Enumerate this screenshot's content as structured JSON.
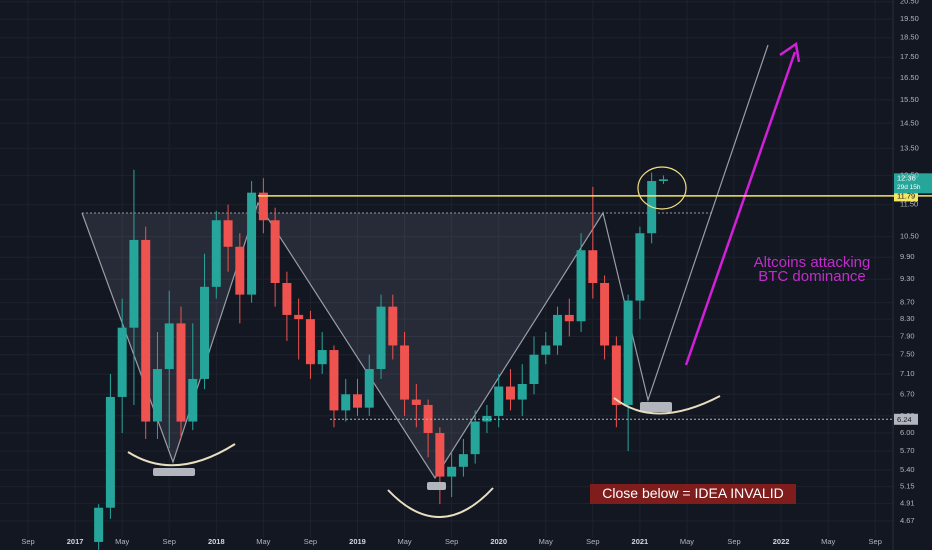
{
  "chart_data": {
    "type": "candlestick",
    "x": [
      "2017-03",
      "2017-04",
      "2017-05",
      "2017-06",
      "2017-07",
      "2017-08",
      "2017-09",
      "2017-10",
      "2017-11",
      "2017-12",
      "2018-01",
      "2018-02",
      "2018-03",
      "2018-04",
      "2018-05",
      "2018-06",
      "2018-07",
      "2018-08",
      "2018-09",
      "2018-10",
      "2018-11",
      "2018-12",
      "2019-01",
      "2019-02",
      "2019-03",
      "2019-04",
      "2019-05",
      "2019-06",
      "2019-07",
      "2019-08",
      "2019-09",
      "2019-10",
      "2019-11",
      "2019-12",
      "2020-01",
      "2020-02",
      "2020-03",
      "2020-04",
      "2020-05",
      "2020-06",
      "2020-07",
      "2020-08",
      "2020-09",
      "2020-10",
      "2020-11",
      "2020-12",
      "2021-01",
      "2021-02",
      "2021-03"
    ],
    "open": [
      4.4,
      4.85,
      6.65,
      8.1,
      10.4,
      6.2,
      7.2,
      8.2,
      6.2,
      7.0,
      9.1,
      11.0,
      10.2,
      8.9,
      11.9,
      11.0,
      9.2,
      8.4,
      8.3,
      7.3,
      7.6,
      6.4,
      6.7,
      6.45,
      7.2,
      8.6,
      7.7,
      6.6,
      6.5,
      6.0,
      5.3,
      5.45,
      5.65,
      6.2,
      6.3,
      6.85,
      6.6,
      6.9,
      7.5,
      7.7,
      8.4,
      8.25,
      10.1,
      9.2,
      7.7,
      6.5,
      8.75,
      10.6,
      12.3
    ],
    "high": [
      4.9,
      7.1,
      8.8,
      12.7,
      10.8,
      8.0,
      9.0,
      8.6,
      8.2,
      10.0,
      11.3,
      11.5,
      10.6,
      12.3,
      12.4,
      11.4,
      9.5,
      8.8,
      8.5,
      8.0,
      7.7,
      7.0,
      7.0,
      7.5,
      8.9,
      8.9,
      8.0,
      6.9,
      6.6,
      6.1,
      5.7,
      5.9,
      6.4,
      6.5,
      7.1,
      7.2,
      7.3,
      7.9,
      8.0,
      8.6,
      8.8,
      10.6,
      12.1,
      9.4,
      7.9,
      8.9,
      10.8,
      12.6,
      12.5
    ],
    "low": [
      4.3,
      4.7,
      6.0,
      6.5,
      5.9,
      5.9,
      5.75,
      5.9,
      6.05,
      6.8,
      8.8,
      9.5,
      8.2,
      8.7,
      10.6,
      8.6,
      7.8,
      7.4,
      7.0,
      7.1,
      6.1,
      6.2,
      6.3,
      6.3,
      7.0,
      7.4,
      6.3,
      6.1,
      5.6,
      4.9,
      5.0,
      5.3,
      5.5,
      6.0,
      6.1,
      6.4,
      6.3,
      6.7,
      7.3,
      7.5,
      7.9,
      8.0,
      8.8,
      7.4,
      6.1,
      5.7,
      8.3,
      10.3,
      12.2
    ],
    "close": [
      4.85,
      6.65,
      8.1,
      10.4,
      6.2,
      7.2,
      8.2,
      6.2,
      7.0,
      9.1,
      11.0,
      10.2,
      8.9,
      11.9,
      11.0,
      9.2,
      8.4,
      8.3,
      7.3,
      7.6,
      6.4,
      6.7,
      6.45,
      7.2,
      8.6,
      7.7,
      6.6,
      6.5,
      6.0,
      5.3,
      5.45,
      5.65,
      6.2,
      6.3,
      6.85,
      6.6,
      6.9,
      7.5,
      7.7,
      8.4,
      8.25,
      10.1,
      9.2,
      7.7,
      6.5,
      8.75,
      10.6,
      12.3,
      12.36
    ],
    "up_color": "#26a69a",
    "down_color": "#ef5350",
    "log_scale": true,
    "grid": true,
    "xlim": [
      "2016-07",
      "2022-10"
    ],
    "xticks": [
      {
        "value": "2016-09",
        "label": "Sep"
      },
      {
        "value": "2017-01",
        "label": "2017"
      },
      {
        "value": "2017-05",
        "label": "May"
      },
      {
        "value": "2017-09",
        "label": "Sep"
      },
      {
        "value": "2018-01",
        "label": "2018"
      },
      {
        "value": "2018-05",
        "label": "May"
      },
      {
        "value": "2018-09",
        "label": "Sep"
      },
      {
        "value": "2019-01",
        "label": "2019"
      },
      {
        "value": "2019-05",
        "label": "May"
      },
      {
        "value": "2019-09",
        "label": "Sep"
      },
      {
        "value": "2020-01",
        "label": "2020"
      },
      {
        "value": "2020-05",
        "label": "May"
      },
      {
        "value": "2020-09",
        "label": "Sep"
      },
      {
        "value": "2021-01",
        "label": "2021"
      },
      {
        "value": "2021-05",
        "label": "May"
      },
      {
        "value": "2021-09",
        "label": "Sep"
      },
      {
        "value": "2022-01",
        "label": "2022"
      },
      {
        "value": "2022-05",
        "label": "May"
      },
      {
        "value": "2022-09",
        "label": "Sep"
      }
    ],
    "ylim": [
      4.3,
      20.6
    ],
    "yticks": [
      {
        "value": 20.5,
        "label": "20.50"
      },
      {
        "value": 19.5,
        "label": "19.50"
      },
      {
        "value": 18.5,
        "label": "18.50"
      },
      {
        "value": 17.5,
        "label": "17.50"
      },
      {
        "value": 16.5,
        "label": "16.50"
      },
      {
        "value": 15.5,
        "label": "15.50"
      },
      {
        "value": 14.5,
        "label": "14.50"
      },
      {
        "value": 13.5,
        "label": "13.50"
      },
      {
        "value": 12.5,
        "label": "12.50"
      },
      {
        "value": 11.5,
        "label": "11.50"
      },
      {
        "value": 10.5,
        "label": "10.50"
      },
      {
        "value": 9.9,
        "label": "9.90"
      },
      {
        "value": 9.3,
        "label": "9.30"
      },
      {
        "value": 8.7,
        "label": "8.70"
      },
      {
        "value": 8.3,
        "label": "8.30"
      },
      {
        "value": 7.9,
        "label": "7.90"
      },
      {
        "value": 7.5,
        "label": "7.50"
      },
      {
        "value": 7.1,
        "label": "7.10"
      },
      {
        "value": 6.7,
        "label": "6.70"
      },
      {
        "value": 6.3,
        "label": "6.30"
      },
      {
        "value": 6.0,
        "label": "6.00"
      },
      {
        "value": 5.7,
        "label": "5.70"
      },
      {
        "value": 5.4,
        "label": "5.40"
      },
      5.15,
      4.91,
      4.67
    ],
    "hlines": [
      {
        "value": 11.79,
        "color": "#f5e663"
      },
      {
        "value": 6.24,
        "color": "#b2b5be"
      }
    ],
    "countdown": "29d 15h",
    "annotations": [
      "Altcoins attacking",
      "BTC dominance",
      "Close below = IDEA INVALID"
    ]
  }
}
